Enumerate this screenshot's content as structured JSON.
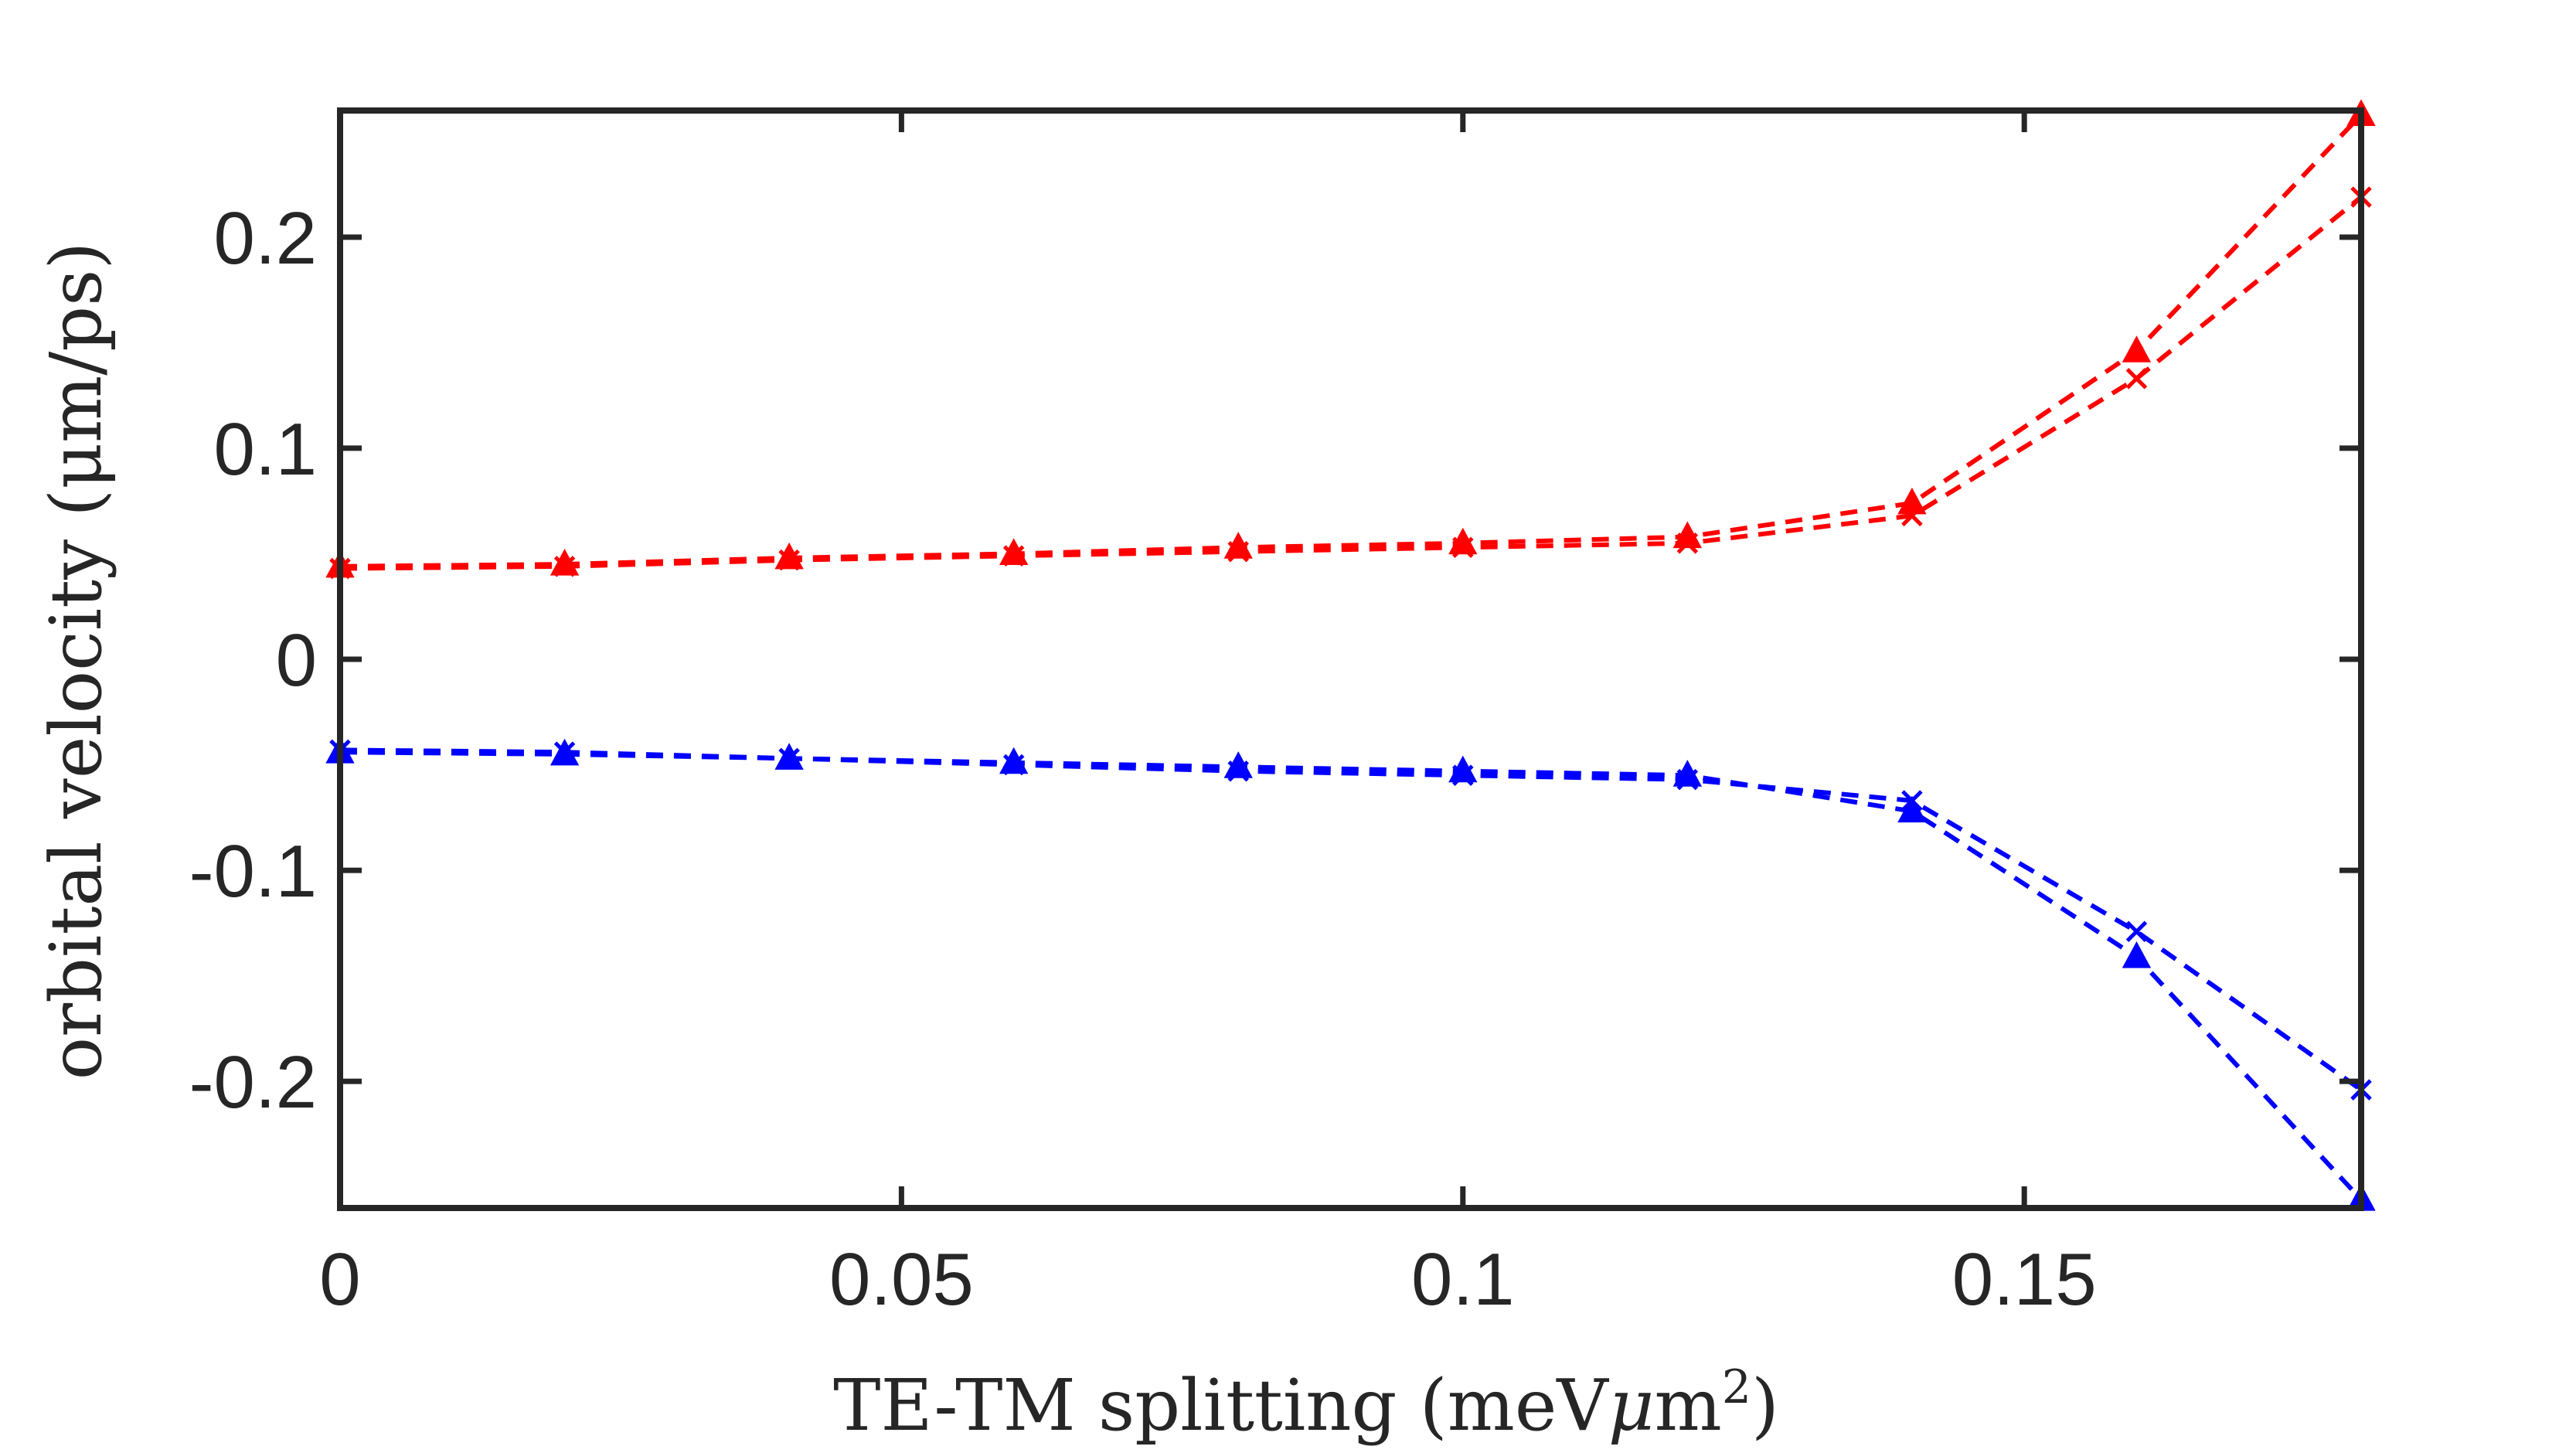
{
  "chart_data": {
    "type": "line",
    "title": "",
    "xlabel": "TE-TM splitting (meVμm²)",
    "xlabel_parts": {
      "main": "TE-TM splitting (meV",
      "mu": "μ",
      "m": "m",
      "sup": "2",
      "close": ")"
    },
    "ylabel": "orbital velocity (μm/ps)",
    "xlim": [
      0,
      0.18
    ],
    "ylim": [
      -0.26,
      0.26
    ],
    "xticks": [
      0,
      0.05,
      0.1,
      0.15
    ],
    "xtick_labels": [
      "0",
      "0.05",
      "0.1",
      "0.15"
    ],
    "yticks": [
      -0.2,
      -0.1,
      0,
      0.1,
      0.2
    ],
    "ytick_labels": [
      "-0.2",
      "-0.1",
      "0",
      "0.1",
      "0.2"
    ],
    "x": [
      0,
      0.02,
      0.04,
      0.06,
      0.08,
      0.1,
      0.12,
      0.14,
      0.16,
      0.18
    ],
    "series": [
      {
        "name": "red-triangle",
        "color": "#ff0000",
        "marker": "triangle",
        "values": [
          0.044,
          0.045,
          0.048,
          0.05,
          0.053,
          0.055,
          0.058,
          0.074,
          0.146,
          0.258
        ]
      },
      {
        "name": "red-cross",
        "color": "#ff0000",
        "marker": "x",
        "values": [
          0.043,
          0.044,
          0.047,
          0.049,
          0.051,
          0.053,
          0.055,
          0.068,
          0.133,
          0.219
        ]
      },
      {
        "name": "blue-triangle",
        "color": "#0000ff",
        "marker": "triangle",
        "values": [
          -0.044,
          -0.045,
          -0.047,
          -0.049,
          -0.051,
          -0.053,
          -0.055,
          -0.072,
          -0.141,
          -0.256
        ]
      },
      {
        "name": "blue-cross",
        "color": "#0000ff",
        "marker": "x",
        "values": [
          -0.043,
          -0.044,
          -0.047,
          -0.05,
          -0.053,
          -0.055,
          -0.057,
          -0.067,
          -0.129,
          -0.204
        ]
      }
    ]
  }
}
